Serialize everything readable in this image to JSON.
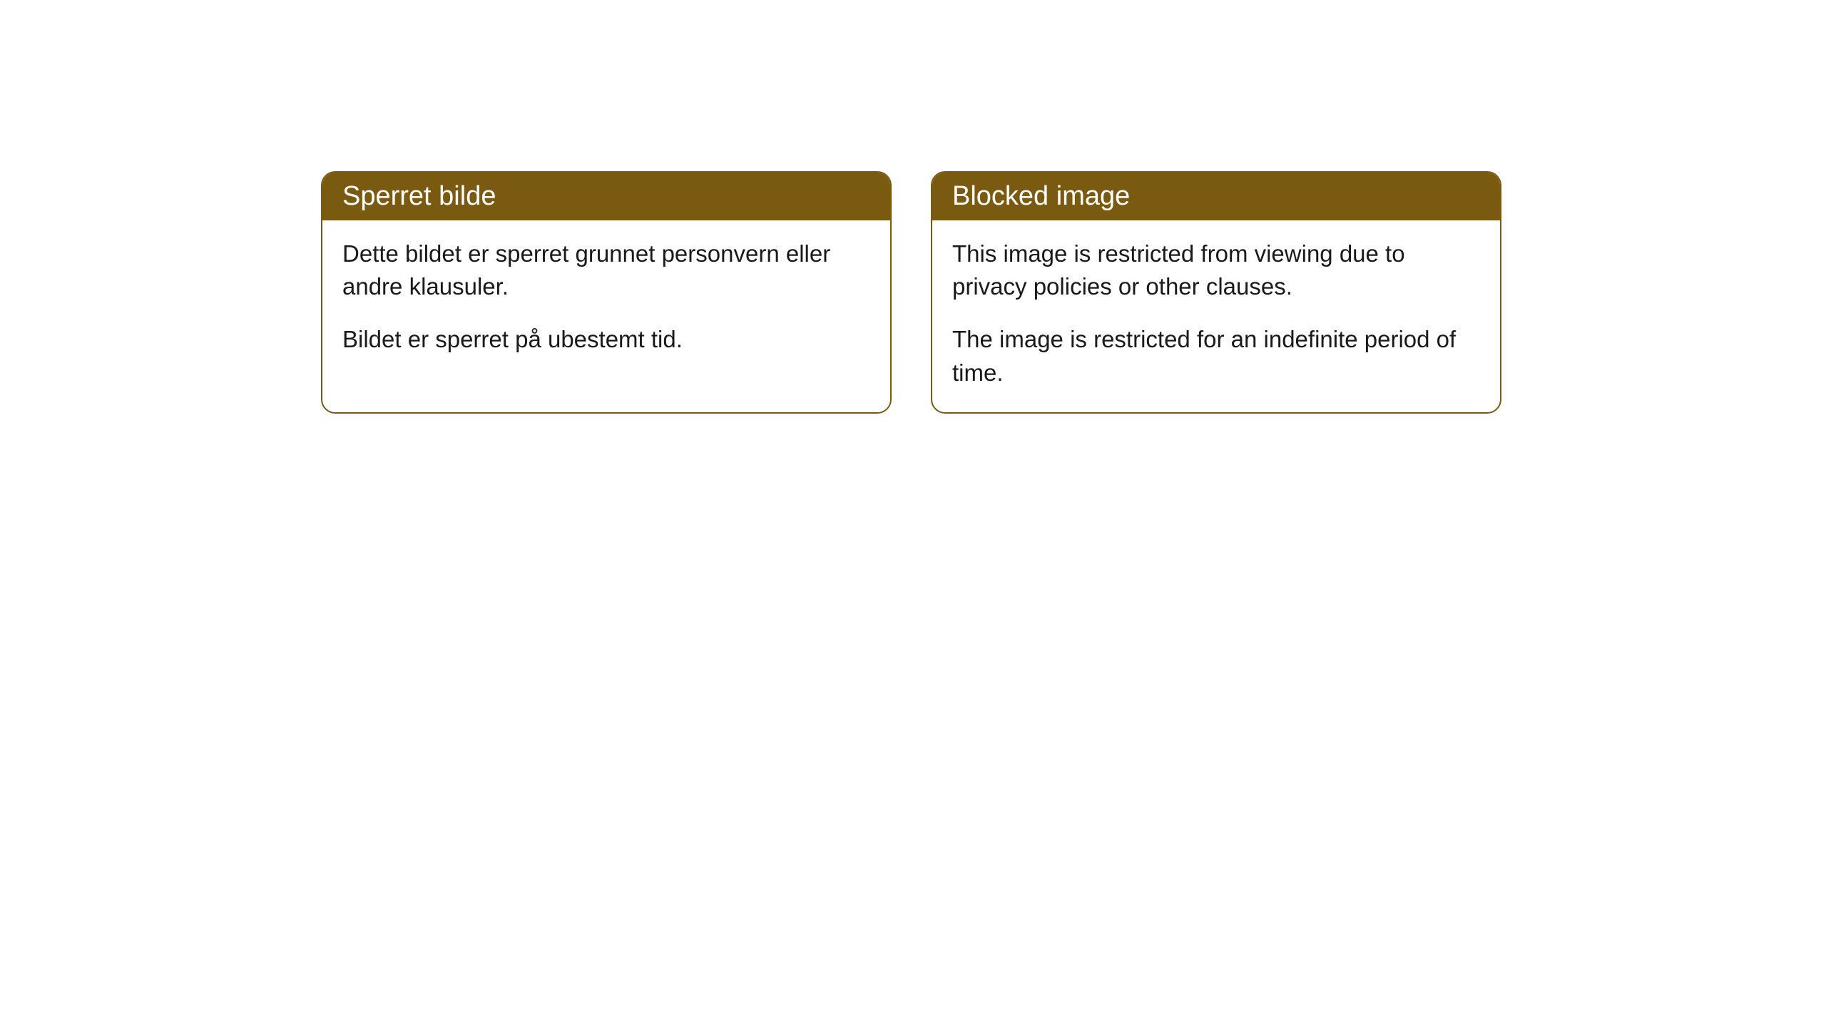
{
  "cards": [
    {
      "title": "Sperret bilde",
      "paragraph1": "Dette bildet er sperret grunnet personvern eller andre klausuler.",
      "paragraph2": "Bildet er sperret på ubestemt tid."
    },
    {
      "title": "Blocked image",
      "paragraph1": "This image is restricted from viewing due to privacy policies or other clauses.",
      "paragraph2": "The image is restricted for an indefinite period of time."
    }
  ],
  "style": {
    "header_bg_color": "#7a5a10",
    "header_text_color": "#ffffff",
    "border_color": "#7a5a10",
    "body_bg_color": "#ffffff",
    "body_text_color": "#1a1a1a",
    "border_radius": 20,
    "title_fontsize": 38,
    "body_fontsize": 33
  }
}
